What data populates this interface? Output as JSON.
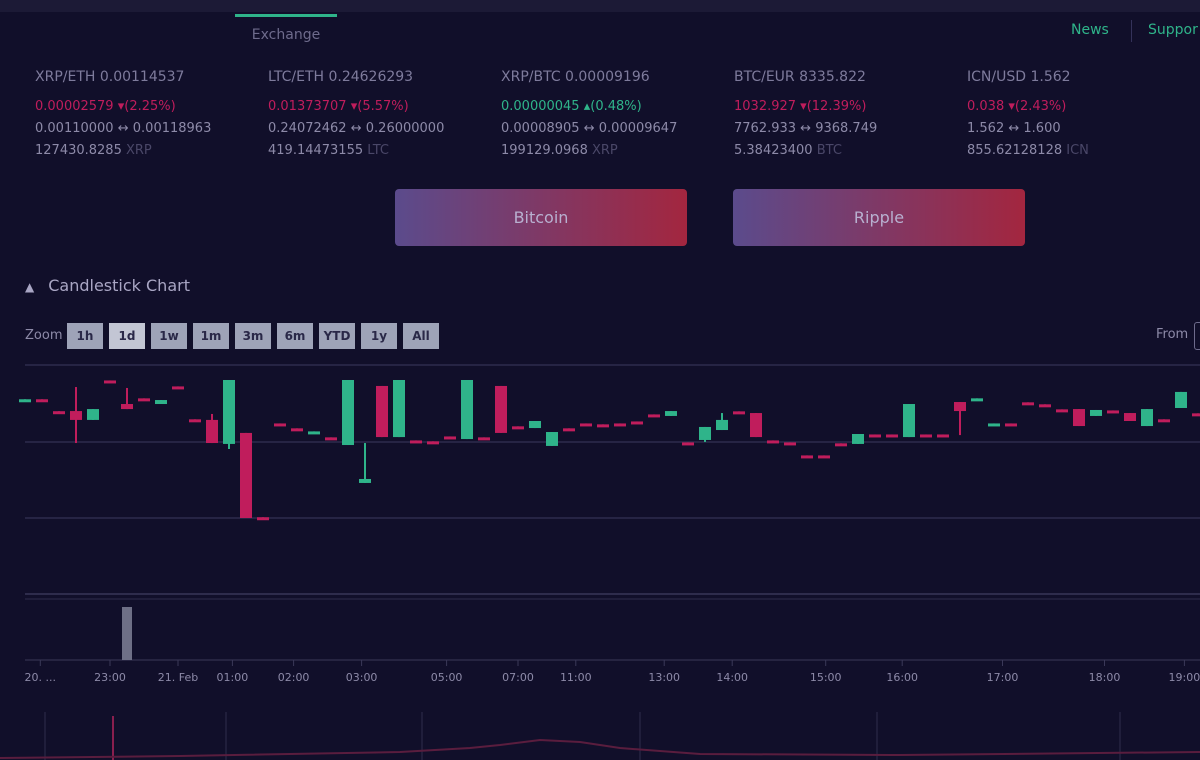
{
  "header": {
    "tab": "Exchange",
    "nav": [
      "News",
      "Suppor"
    ]
  },
  "tickers": [
    {
      "pair": "XRP/ETH 0.00114537",
      "change": "0.00002579",
      "pct": "(2.25%)",
      "dir": "down",
      "range_low": "0.00110000",
      "range_high": "0.00118963",
      "volume": "127430.8285",
      "unit": "XRP"
    },
    {
      "pair": "LTC/ETH 0.24626293",
      "change": "0.01373707",
      "pct": "(5.57%)",
      "dir": "down",
      "range_low": "0.24072462",
      "range_high": "0.26000000",
      "volume": "419.14473155",
      "unit": "LTC"
    },
    {
      "pair": "XRP/BTC 0.00009196",
      "change": "0.00000045",
      "pct": "(0.48%)",
      "dir": "up",
      "range_low": "0.00008905",
      "range_high": "0.00009647",
      "volume": "199129.0968",
      "unit": "XRP"
    },
    {
      "pair": "BTC/EUR 8335.822",
      "change": "1032.927",
      "pct": "(12.39%)",
      "dir": "down",
      "range_low": "7762.933",
      "range_high": "9368.749",
      "volume": "5.38423400",
      "unit": "BTC"
    },
    {
      "pair": "ICN/USD 1.562",
      "change": "0.038",
      "pct": "(2.43%)",
      "dir": "down",
      "range_low": "1.562",
      "range_high": "1.600",
      "volume": "855.62128128",
      "unit": "ICN"
    }
  ],
  "buttons": {
    "bitcoin": "Bitcoin",
    "ripple": "Ripple"
  },
  "section": {
    "title": "Candlestick Chart"
  },
  "zoom": {
    "label": "Zoom",
    "options": [
      "1h",
      "1d",
      "1w",
      "1m",
      "3m",
      "6m",
      "YTD",
      "1y",
      "All"
    ],
    "selected": "1d"
  },
  "range": {
    "from_label": "From"
  },
  "colors": {
    "up": "#2fb48a",
    "down": "#c01d5c",
    "accent": "#2fb48a"
  },
  "chart_data": {
    "type": "candlestick",
    "ylim": [
      0,
      100
    ],
    "grid": true,
    "ohlc": [
      [
        77.1,
        77.6,
        77.1,
        77.6
      ],
      [
        77.6,
        77.6,
        77.1,
        77.1
      ],
      [
        69.8,
        69.8,
        69.3,
        69.3
      ],
      [
        69.9,
        85.6,
        49.0,
        64.1
      ],
      [
        64.1,
        71.2,
        64.1,
        71.2
      ],
      [
        89.9,
        89.9,
        89.5,
        89.5
      ],
      [
        74.5,
        85.0,
        71.2,
        71.2
      ],
      [
        78.2,
        78.2,
        77.8,
        77.8
      ],
      [
        74.5,
        77.1,
        74.5,
        77.1
      ],
      [
        86.0,
        86.0,
        85.6,
        85.6
      ],
      [
        64.5,
        64.5,
        64.1,
        64.1
      ],
      [
        64.1,
        68.0,
        49.0,
        49.0
      ],
      [
        48.4,
        90.2,
        45.1,
        90.2
      ],
      [
        55.6,
        55.6,
        0,
        0
      ],
      [
        0.5,
        0.5,
        0,
        0
      ],
      [
        61.8,
        61.8,
        61.4,
        61.4
      ],
      [
        58.6,
        58.6,
        58.2,
        58.2
      ],
      [
        56.2,
        56.6,
        56.2,
        56.6
      ],
      [
        52.7,
        52.7,
        52.3,
        52.3
      ],
      [
        47.7,
        90.2,
        47.7,
        90.2
      ],
      [
        22.9,
        49.0,
        22.9,
        25.5
      ],
      [
        86.3,
        86.3,
        52.9,
        52.9
      ],
      [
        52.9,
        90.2,
        52.9,
        90.2
      ],
      [
        50.7,
        50.7,
        50.3,
        50.3
      ],
      [
        50.1,
        50.1,
        49.7,
        49.7
      ],
      [
        53.3,
        53.3,
        52.9,
        52.9
      ],
      [
        51.6,
        90.2,
        51.6,
        90.2
      ],
      [
        52.7,
        52.7,
        52.3,
        52.3
      ],
      [
        86.3,
        86.3,
        55.6,
        55.6
      ],
      [
        59.9,
        59.9,
        59.5,
        59.5
      ],
      [
        58.8,
        63.4,
        58.8,
        63.4
      ],
      [
        47.1,
        56.2,
        47.1,
        56.2
      ],
      [
        58.6,
        58.6,
        58.2,
        58.2
      ],
      [
        61.8,
        61.8,
        61.4,
        61.4
      ],
      [
        61.2,
        61.2,
        60.8,
        60.8
      ],
      [
        61.8,
        61.8,
        61.4,
        61.4
      ],
      [
        63.1,
        63.1,
        62.7,
        62.7
      ],
      [
        67.7,
        67.7,
        67.3,
        67.3
      ],
      [
        66.7,
        69.9,
        66.7,
        69.9
      ],
      [
        49.4,
        49.4,
        49.0,
        49.0
      ],
      [
        51.0,
        59.5,
        49.7,
        59.5
      ],
      [
        57.5,
        68.6,
        57.5,
        64.1
      ],
      [
        69.7,
        69.7,
        69.3,
        69.3
      ],
      [
        68.6,
        68.6,
        52.9,
        52.9
      ],
      [
        50.7,
        50.7,
        50.3,
        50.3
      ],
      [
        49.4,
        49.4,
        49.0,
        49.0
      ],
      [
        40.9,
        40.9,
        40.5,
        40.5
      ],
      [
        40.9,
        40.9,
        40.5,
        40.5
      ],
      [
        48.8,
        48.8,
        48.4,
        48.4
      ],
      [
        48.4,
        54.9,
        48.4,
        54.9
      ],
      [
        54.6,
        54.6,
        54.2,
        54.2
      ],
      [
        54.6,
        54.6,
        54.2,
        54.2
      ],
      [
        52.9,
        74.5,
        52.9,
        74.5
      ],
      [
        54.6,
        54.6,
        54.2,
        54.2
      ],
      [
        54.6,
        54.6,
        54.2,
        54.2
      ],
      [
        75.8,
        75.8,
        54.2,
        69.9
      ],
      [
        77.8,
        78.2,
        77.8,
        78.2
      ],
      [
        61.4,
        61.8,
        61.4,
        61.8
      ],
      [
        61.8,
        61.8,
        61.4,
        61.4
      ],
      [
        75.6,
        75.6,
        75.2,
        75.2
      ],
      [
        74.3,
        74.3,
        73.9,
        73.9
      ],
      [
        71.0,
        71.0,
        70.6,
        70.6
      ],
      [
        71.2,
        71.2,
        60.1,
        60.1
      ],
      [
        66.7,
        70.6,
        66.7,
        70.6
      ],
      [
        70.3,
        70.3,
        69.9,
        69.9
      ],
      [
        68.6,
        68.6,
        63.4,
        63.4
      ],
      [
        60.1,
        71.2,
        60.1,
        71.2
      ],
      [
        64.5,
        64.5,
        64.1,
        64.1
      ],
      [
        71.9,
        82.4,
        71.9,
        82.4
      ],
      [
        68.4,
        68.4,
        68.0,
        68.0
      ]
    ],
    "volume_spike_candle": 6,
    "x_ticks": [
      {
        "label": "20. ...",
        "at_candle": 0.9
      },
      {
        "label": "23:00",
        "at_candle": 5
      },
      {
        "label": "21. Feb",
        "at_candle": 9
      },
      {
        "label": "01:00",
        "at_candle": 12.2
      },
      {
        "label": "02:00",
        "at_candle": 15.8
      },
      {
        "label": "03:00",
        "at_candle": 19.8
      },
      {
        "label": "05:00",
        "at_candle": 24.8
      },
      {
        "label": "07:00",
        "at_candle": 29
      },
      {
        "label": "11:00",
        "at_candle": 32.4
      },
      {
        "label": "13:00",
        "at_candle": 37.6
      },
      {
        "label": "14:00",
        "at_candle": 41.6
      },
      {
        "label": "15:00",
        "at_candle": 47.1
      },
      {
        "label": "16:00",
        "at_candle": 51.6
      },
      {
        "label": "17:00",
        "at_candle": 57.5
      },
      {
        "label": "18:00",
        "at_candle": 63.5
      },
      {
        "label": "19:00",
        "at_candle": 68.2
      }
    ]
  }
}
